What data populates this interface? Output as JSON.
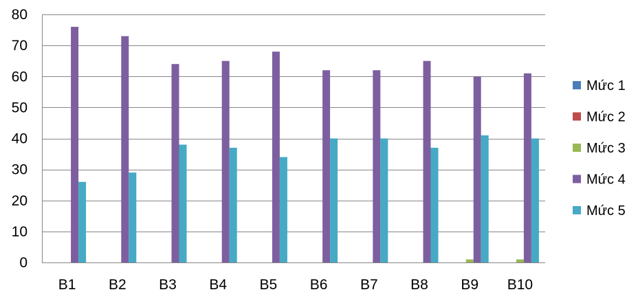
{
  "chart_data": {
    "type": "bar",
    "title": "",
    "xlabel": "",
    "ylabel": "",
    "categories": [
      "B1",
      "B2",
      "B3",
      "B4",
      "B5",
      "B6",
      "B7",
      "B8",
      "B9",
      "B10"
    ],
    "ylim": [
      0,
      80
    ],
    "yticks": [
      0,
      10,
      20,
      30,
      40,
      50,
      60,
      70,
      80
    ],
    "grid": true,
    "legend_position": "right",
    "series": [
      {
        "name": "Mức 1",
        "color": "#4a7ebb",
        "values": [
          0,
          0,
          0,
          0,
          0,
          0,
          0,
          0,
          0,
          0
        ]
      },
      {
        "name": "Mức 2",
        "color": "#be4b48",
        "values": [
          0,
          0,
          0,
          0,
          0,
          0,
          0,
          0,
          0,
          0
        ]
      },
      {
        "name": "Mức 3",
        "color": "#98b954",
        "values": [
          0,
          0,
          0,
          0,
          0,
          0,
          0,
          0,
          1,
          1
        ]
      },
      {
        "name": "Mức 4",
        "color": "#7d5fa0",
        "values": [
          76,
          73,
          64,
          65,
          68,
          62,
          62,
          65,
          60,
          61
        ]
      },
      {
        "name": "Mức 5",
        "color": "#46aac5",
        "values": [
          26,
          29,
          38,
          37,
          34,
          40,
          40,
          37,
          41,
          40
        ]
      }
    ]
  }
}
